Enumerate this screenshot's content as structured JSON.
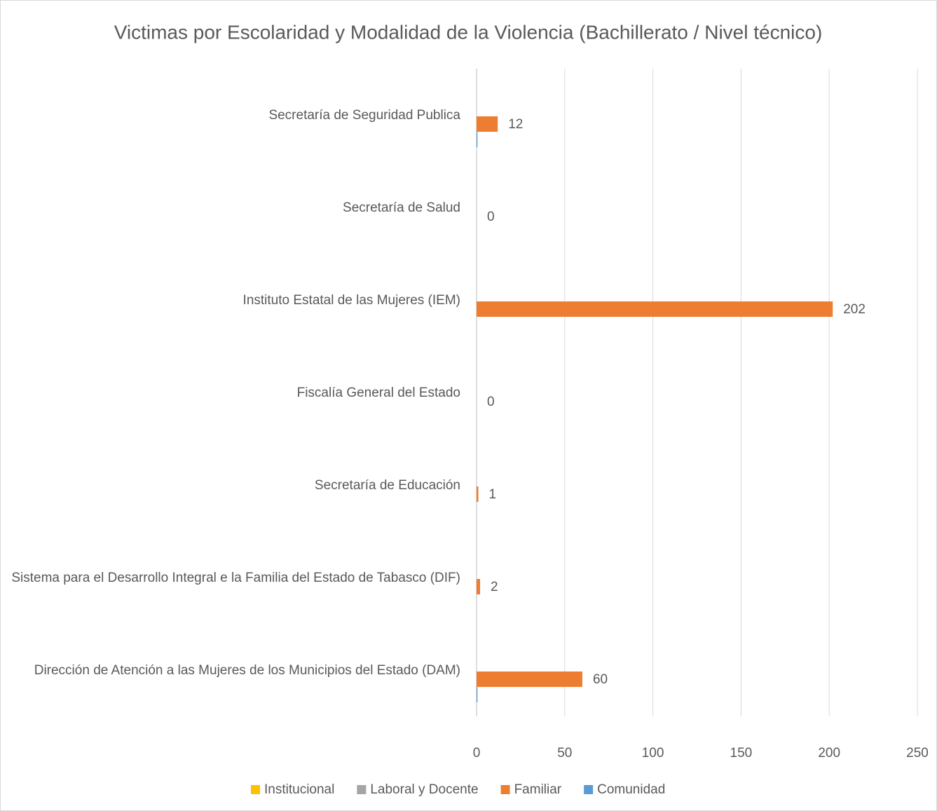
{
  "chart_data": {
    "type": "bar",
    "orientation": "horizontal",
    "title": "Victimas por Escolaridad y Modalidad de la Violencia (Bachillerato / Nivel técnico)",
    "categories": [
      "Secretaría de Seguridad Publica",
      "Secretaría de Salud",
      "Instituto Estatal de las Mujeres (IEM)",
      "Fiscalía General del Estado",
      "Secretaría de Educación",
      "Sistema para el Desarrollo Integral e la Familia del Estado de Tabasco (DIF)",
      "Dirección de Atención a las Mujeres de los Municipios del Estado (DAM)"
    ],
    "series": [
      {
        "name": "Institucional",
        "color": "#ffc000",
        "values": [
          0,
          0,
          0,
          0,
          0,
          0,
          0
        ]
      },
      {
        "name": "Laboral y Docente",
        "color": "#a5a5a5",
        "values": [
          0,
          0,
          0,
          0,
          0,
          0,
          0
        ]
      },
      {
        "name": "Familiar",
        "color": "#ed7d31",
        "values": [
          12,
          0,
          202,
          0,
          1,
          2,
          60
        ],
        "show_labels": true
      },
      {
        "name": "Comunidad",
        "color": "#5b9bd5",
        "values": [
          0.5,
          0,
          0,
          0,
          0,
          0,
          0.5
        ]
      }
    ],
    "xlim": [
      0,
      250
    ],
    "xticks": [
      0,
      50,
      100,
      150,
      200,
      250
    ],
    "grid": true,
    "legend": "bottom"
  }
}
